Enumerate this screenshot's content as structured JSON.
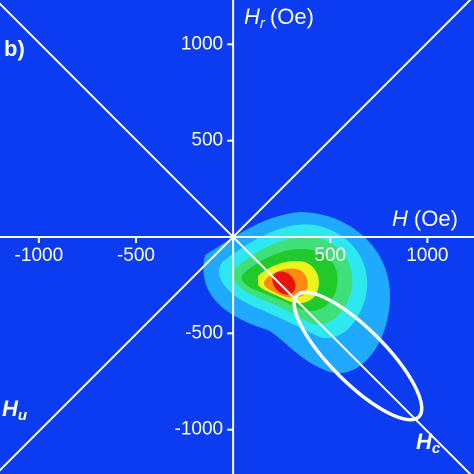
{
  "chart_data": {
    "type": "contour",
    "panel_label": "b)",
    "x_label": {
      "symbol": "H",
      "unit": "(Oe)"
    },
    "y_label": {
      "symbol": "H",
      "subscript": "r",
      "unit": "(Oe)"
    },
    "diagonal_labels": [
      {
        "symbol": "H",
        "subscript": "u"
      },
      {
        "symbol": "H",
        "subscript": "c"
      }
    ],
    "xlim": [
      -1200,
      1240
    ],
    "ylim": [
      -1230,
      1230
    ],
    "xticks": [
      -1000,
      -500,
      500,
      1000
    ],
    "yticks": [
      1000,
      500,
      -500,
      -1000
    ],
    "background": "#0b3cf2",
    "axis_color": "#ffffff"
  }
}
